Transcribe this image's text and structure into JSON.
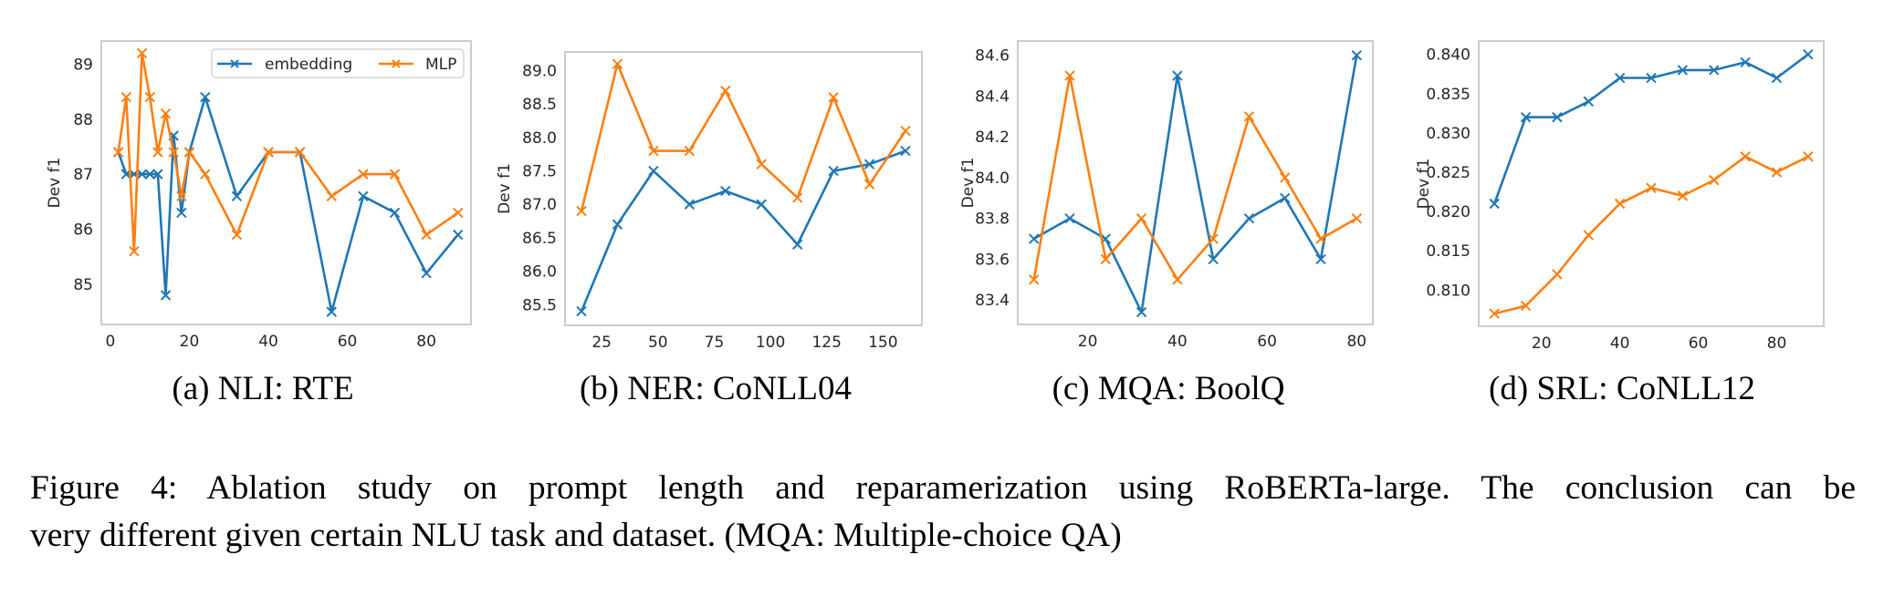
{
  "colors": {
    "embedding": "#1f77b4",
    "mlp": "#ff7f0e",
    "spine": "#cccccc",
    "tick_text": "#262626"
  },
  "legend": {
    "embedding_label": "embedding",
    "mlp_label": "MLP",
    "placement": "upper-right (panel a only)"
  },
  "caption": {
    "line1": "Figure 4:  Ablation study on prompt length and reparamerization using RoBERTa-large.  The conclusion can be",
    "line2": "very different given certain NLU task and dataset. (MQA: Multiple-choice QA)"
  },
  "chart_data": [
    {
      "type": "line",
      "panel": "a",
      "subcaption": "(a)  NLI: RTE",
      "xlabel": "",
      "ylabel": "Dev f1",
      "xlim": [
        -2.3,
        91.3
      ],
      "ylim": [
        84.27,
        89.42
      ],
      "xticks": [
        0,
        20,
        40,
        60,
        80
      ],
      "yticks": [
        85,
        86,
        87,
        88,
        89
      ],
      "ytick_labels": [
        "85",
        "86",
        "87",
        "88",
        "89"
      ],
      "xtick_labels": [
        "0",
        "20",
        "40",
        "60",
        "80"
      ],
      "grid": false,
      "legend": true,
      "x": [
        2,
        4,
        6,
        8,
        10,
        12,
        14,
        16,
        18,
        20,
        24,
        32,
        40,
        48,
        56,
        64,
        72,
        80,
        88
      ],
      "series": [
        {
          "name": "embedding",
          "marker": "x",
          "values": [
            87.4,
            87.0,
            87.0,
            87.0,
            87.0,
            87.0,
            84.8,
            87.7,
            86.3,
            87.4,
            88.4,
            86.6,
            87.4,
            87.4,
            84.5,
            86.6,
            86.3,
            85.2,
            85.9
          ]
        },
        {
          "name": "MLP",
          "marker": "x",
          "values": [
            87.4,
            88.4,
            85.6,
            89.2,
            88.4,
            87.4,
            88.1,
            87.4,
            86.6,
            87.4,
            87.0,
            85.9,
            87.4,
            87.4,
            86.6,
            87.0,
            87.0,
            85.9,
            86.3
          ]
        }
      ]
    },
    {
      "type": "line",
      "panel": "b",
      "subcaption": "(b)  NER: CoNLL04",
      "xlabel": "",
      "ylabel": "Dev f1",
      "xlim": [
        8.7,
        167.3
      ],
      "ylim": [
        85.19,
        89.28
      ],
      "xticks": [
        25,
        50,
        75,
        100,
        125,
        150
      ],
      "xtick_labels": [
        "25",
        "50",
        "75",
        "100",
        "125",
        "150"
      ],
      "yticks": [
        85.5,
        86.0,
        86.5,
        87.0,
        87.5,
        88.0,
        88.5,
        89.0
      ],
      "ytick_labels": [
        "85.5",
        "86.0",
        "86.5",
        "87.0",
        "87.5",
        "88.0",
        "88.5",
        "89.0"
      ],
      "grid": false,
      "legend": false,
      "x": [
        16,
        32,
        48,
        64,
        80,
        96,
        112,
        128,
        144,
        160
      ],
      "series": [
        {
          "name": "embedding",
          "marker": "x",
          "values": [
            85.4,
            86.7,
            87.5,
            87.0,
            87.2,
            87.0,
            86.4,
            87.5,
            87.6,
            87.8
          ]
        },
        {
          "name": "MLP",
          "marker": "x",
          "values": [
            86.9,
            89.1,
            87.8,
            87.8,
            88.7,
            87.6,
            87.1,
            88.6,
            87.3,
            88.1
          ]
        }
      ]
    },
    {
      "type": "line",
      "panel": "c",
      "subcaption": "(c)  MQA: BoolQ",
      "xlabel": "",
      "ylabel": "Dev f1",
      "xlim": [
        4.4,
        83.6
      ],
      "ylim": [
        83.28,
        84.67
      ],
      "xticks": [
        20,
        40,
        60,
        80
      ],
      "xtick_labels": [
        "20",
        "40",
        "60",
        "80"
      ],
      "yticks": [
        83.4,
        83.6,
        83.8,
        84.0,
        84.2,
        84.4,
        84.6
      ],
      "ytick_labels": [
        "83.4",
        "83.6",
        "83.8",
        "84.0",
        "84.2",
        "84.4",
        "84.6"
      ],
      "grid": false,
      "legend": false,
      "x": [
        8,
        16,
        24,
        32,
        40,
        48,
        56,
        64,
        72,
        80
      ],
      "series": [
        {
          "name": "embedding",
          "marker": "x",
          "values": [
            83.7,
            83.8,
            83.7,
            83.34,
            84.5,
            83.6,
            83.8,
            83.9,
            83.6,
            84.6
          ]
        },
        {
          "name": "MLP",
          "marker": "x",
          "values": [
            83.5,
            84.5,
            83.6,
            83.8,
            83.5,
            83.7,
            84.3,
            84.0,
            83.7,
            83.8
          ]
        }
      ]
    },
    {
      "type": "line",
      "panel": "d",
      "subcaption": "(d)  SRL: CoNLL12",
      "xlabel": "",
      "ylabel": "Dev f1",
      "xlim": [
        4.0,
        92.0
      ],
      "ylim": [
        0.8054,
        0.8417
      ],
      "xticks": [
        20,
        40,
        60,
        80
      ],
      "xtick_labels": [
        "20",
        "40",
        "60",
        "80"
      ],
      "yticks": [
        0.81,
        0.815,
        0.82,
        0.825,
        0.83,
        0.835,
        0.84
      ],
      "ytick_labels": [
        "0.810",
        "0.815",
        "0.820",
        "0.825",
        "0.830",
        "0.835",
        "0.840"
      ],
      "grid": false,
      "legend": false,
      "x": [
        8,
        16,
        24,
        32,
        40,
        48,
        56,
        64,
        72,
        80,
        88
      ],
      "series": [
        {
          "name": "embedding",
          "marker": "x",
          "values": [
            0.821,
            0.832,
            0.832,
            0.834,
            0.837,
            0.837,
            0.838,
            0.838,
            0.839,
            0.837,
            0.84
          ]
        },
        {
          "name": "MLP",
          "marker": "x",
          "values": [
            0.807,
            0.808,
            0.812,
            0.817,
            0.821,
            0.823,
            0.822,
            0.824,
            0.827,
            0.825,
            0.827
          ]
        }
      ]
    }
  ]
}
